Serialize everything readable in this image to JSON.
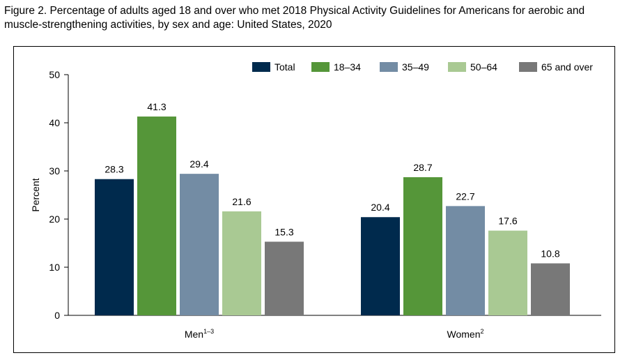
{
  "figure_title": "Figure 2. Percentage of adults aged 18 and over who met 2018 Physical Activity Guidelines for Americans for aerobic and muscle-strengthening activities, by sex and age: United States, 2020",
  "chart_data": {
    "type": "bar",
    "title": "",
    "xlabel": "",
    "ylabel": "Percent",
    "ylim": [
      0,
      50
    ],
    "yticks": [
      0,
      10,
      20,
      30,
      40,
      50
    ],
    "grid": false,
    "legend_position": "top-right",
    "categories": [
      {
        "label": "Men",
        "superscript": "1–3"
      },
      {
        "label": "Women",
        "superscript": "2"
      }
    ],
    "series": [
      {
        "name": "Total",
        "color": "#002a4d",
        "values": [
          28.3,
          20.4
        ]
      },
      {
        "name": "18–34",
        "color": "#559639",
        "values": [
          41.3,
          28.7
        ]
      },
      {
        "name": "35–49",
        "color": "#738ca4",
        "values": [
          29.4,
          22.7
        ]
      },
      {
        "name": "50–64",
        "color": "#a9c993",
        "values": [
          21.6,
          17.6
        ]
      },
      {
        "name": "65 and over",
        "color": "#787878",
        "values": [
          15.3,
          10.8
        ]
      }
    ]
  }
}
